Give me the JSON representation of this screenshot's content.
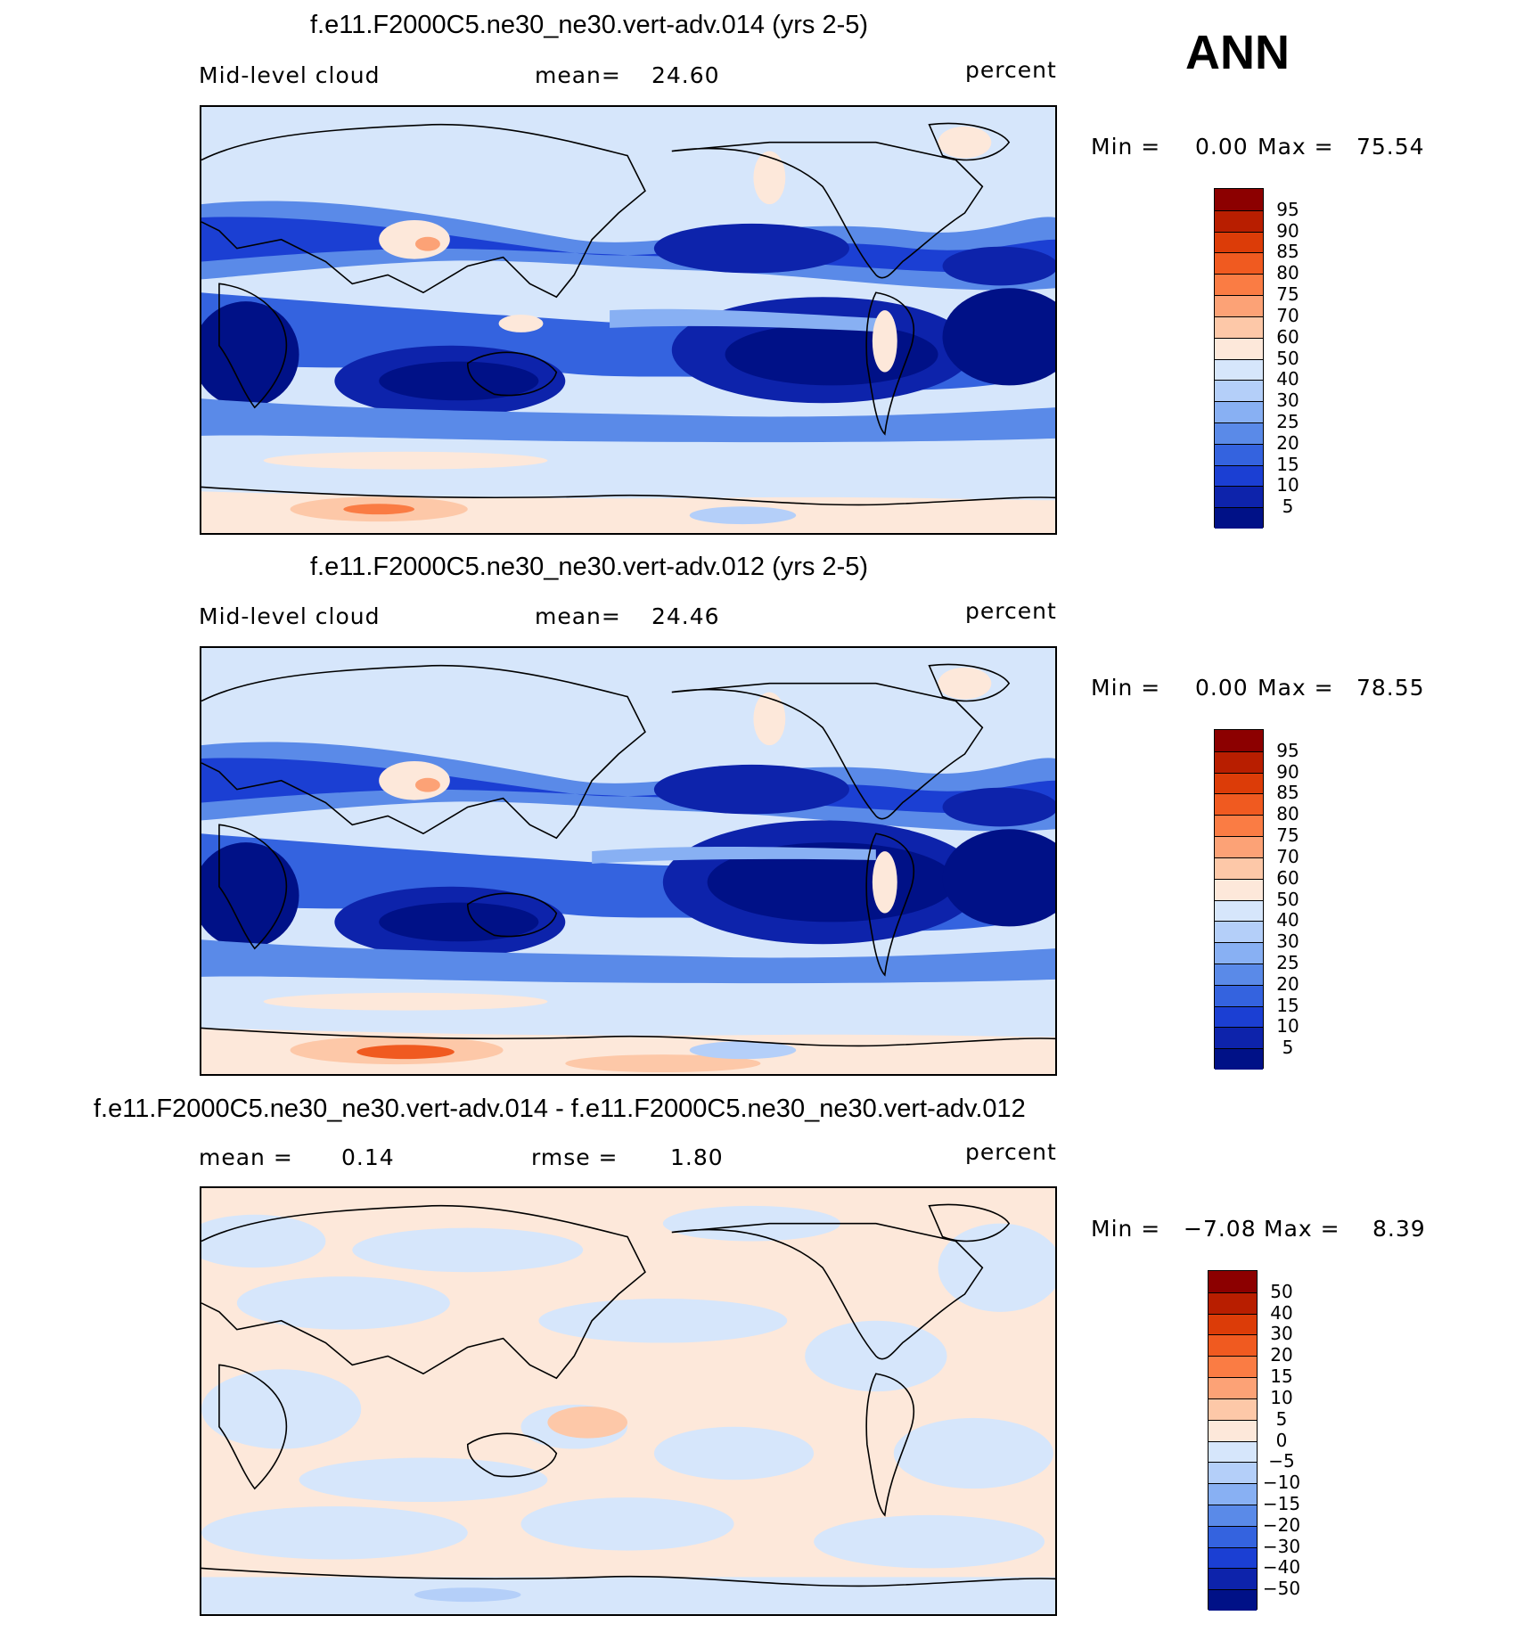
{
  "season": "ANN",
  "chart_data": [
    {
      "type": "heatmap",
      "title": "f.e11.F2000C5.ne30_ne30.vert-adv.014 (yrs 2-5)",
      "variable": "Mid-level cloud",
      "mean_label": "mean=",
      "mean": "24.60",
      "units": "percent",
      "min_label": "Min =",
      "min": "0.00",
      "max_label": "Max =",
      "max": "75.54",
      "colorbar": {
        "levels": [
          "95",
          "90",
          "85",
          "80",
          "75",
          "70",
          "60",
          "50",
          "40",
          "30",
          "25",
          "20",
          "15",
          "10",
          "5"
        ],
        "colors": [
          "#8c0000",
          "#b81e00",
          "#dc3c08",
          "#f05a20",
          "#fa7c44",
          "#fca276",
          "#fdc8a8",
          "#fde8da",
          "#d6e6fb",
          "#b4cff9",
          "#88b0f3",
          "#5a8ae8",
          "#3463df",
          "#1b3fd3",
          "#0d23ab",
          "#001187"
        ]
      }
    },
    {
      "type": "heatmap",
      "title": "f.e11.F2000C5.ne30_ne30.vert-adv.012 (yrs 2-5)",
      "variable": "Mid-level cloud",
      "mean_label": "mean=",
      "mean": "24.46",
      "units": "percent",
      "min_label": "Min =",
      "min": "0.00",
      "max_label": "Max =",
      "max": "78.55",
      "colorbar": {
        "levels": [
          "95",
          "90",
          "85",
          "80",
          "75",
          "70",
          "60",
          "50",
          "40",
          "30",
          "25",
          "20",
          "15",
          "10",
          "5"
        ],
        "colors": [
          "#8c0000",
          "#b81e00",
          "#dc3c08",
          "#f05a20",
          "#fa7c44",
          "#fca276",
          "#fdc8a8",
          "#fde8da",
          "#d6e6fb",
          "#b4cff9",
          "#88b0f3",
          "#5a8ae8",
          "#3463df",
          "#1b3fd3",
          "#0d23ab",
          "#001187"
        ]
      }
    },
    {
      "type": "heatmap",
      "title": "f.e11.F2000C5.ne30_ne30.vert-adv.014 - f.e11.F2000C5.ne30_ne30.vert-adv.012",
      "mean_label": "mean =",
      "mean": "0.14",
      "rmse_label": "rmse =",
      "rmse": "1.80",
      "units": "percent",
      "min_label": "Min =",
      "min": "−7.08",
      "max_label": "Max =",
      "max": "8.39",
      "colorbar": {
        "levels": [
          "50",
          "40",
          "30",
          "20",
          "15",
          "10",
          "5",
          "0",
          "−5",
          "−10",
          "−15",
          "−20",
          "−30",
          "−40",
          "−50"
        ],
        "colors": [
          "#8c0000",
          "#b81e00",
          "#dc3c08",
          "#f05a20",
          "#fa7c44",
          "#fca276",
          "#fdc8a8",
          "#fde8da",
          "#d6e6fb",
          "#b4cff9",
          "#88b0f3",
          "#5a8ae8",
          "#3463df",
          "#1b3fd3",
          "#0d23ab",
          "#001187"
        ]
      }
    }
  ]
}
